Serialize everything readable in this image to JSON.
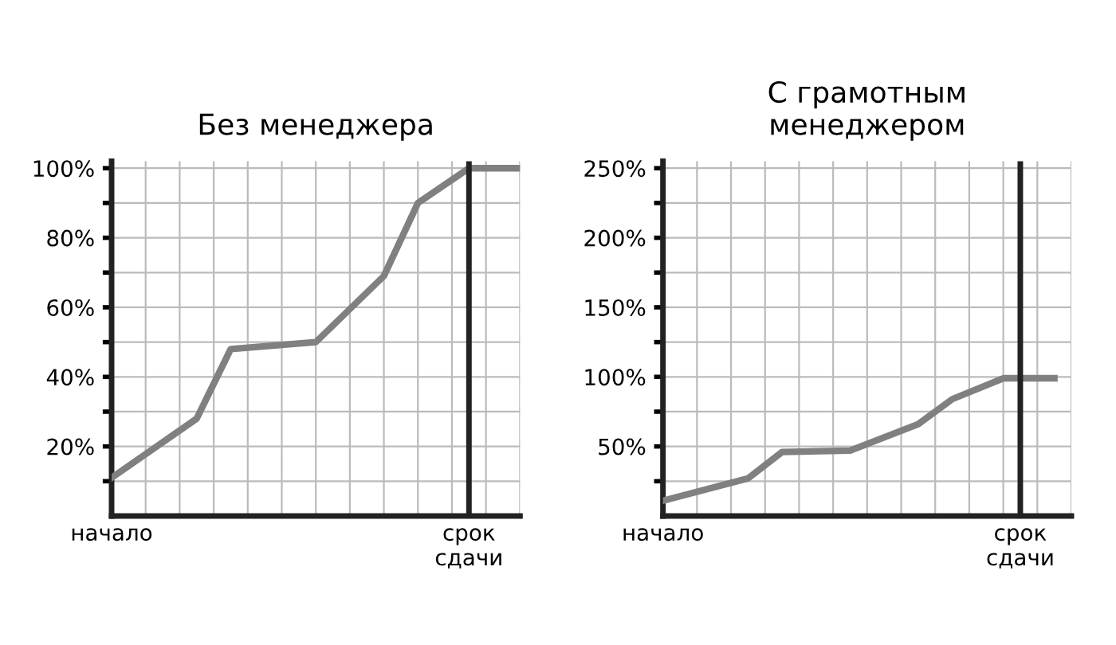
{
  "chart_data": [
    {
      "type": "line",
      "title": "Без менеджера",
      "categories": [
        "начало",
        null,
        null,
        null,
        null,
        null,
        null,
        null,
        null,
        null,
        null,
        null,
        null,
        null,
        null,
        null,
        null,
        null,
        null,
        null,
        null,
        "срок\nсдачи",
        null,
        null,
        null
      ],
      "values": [
        11,
        null,
        null,
        null,
        null,
        28,
        null,
        48,
        null,
        null,
        null,
        null,
        50,
        null,
        null,
        null,
        69,
        null,
        90,
        null,
        null,
        100,
        null,
        null,
        100
      ],
      "color": "#808080",
      "ylim": [
        0,
        102
      ],
      "yticks": [
        {
          "value": 10,
          "label": null
        },
        {
          "value": 20,
          "label": "20%"
        },
        {
          "value": 30,
          "label": null
        },
        {
          "value": 40,
          "label": "40%"
        },
        {
          "value": 50,
          "label": null
        },
        {
          "value": 60,
          "label": "60%"
        },
        {
          "value": 70,
          "label": null
        },
        {
          "value": 80,
          "label": "80%"
        },
        {
          "value": 90,
          "label": null
        },
        {
          "value": 100,
          "label": "100%"
        }
      ],
      "ref_lines": [
        {
          "axis": "x",
          "value": "срок\nсдачи",
          "color": "#222222"
        }
      ],
      "grid": true,
      "marker": "none",
      "line_style": "solid"
    },
    {
      "type": "line",
      "title": "С грамотным\nменеджером",
      "categories": [
        "начало",
        null,
        null,
        null,
        null,
        null,
        null,
        null,
        null,
        null,
        null,
        null,
        null,
        null,
        null,
        null,
        null,
        null,
        null,
        null,
        null,
        "срок\nсдачи",
        null,
        null,
        null
      ],
      "values": [
        11,
        null,
        null,
        null,
        null,
        27,
        null,
        46,
        null,
        null,
        null,
        47,
        null,
        null,
        null,
        66,
        null,
        84,
        null,
        null,
        99,
        null,
        null,
        99,
        null
      ],
      "color": "#808080",
      "ylim": [
        0,
        255
      ],
      "yticks": [
        {
          "value": 25,
          "label": null
        },
        {
          "value": 50,
          "label": "50%"
        },
        {
          "value": 75,
          "label": null
        },
        {
          "value": 100,
          "label": "100%"
        },
        {
          "value": 125,
          "label": null
        },
        {
          "value": 150,
          "label": "150%"
        },
        {
          "value": 175,
          "label": null
        },
        {
          "value": 200,
          "label": "200%"
        },
        {
          "value": 225,
          "label": null
        },
        {
          "value": 250,
          "label": "250%"
        }
      ],
      "ref_lines": [
        {
          "axis": "x",
          "value": "срок\nсдачи",
          "color": "#222222"
        }
      ],
      "grid": true,
      "marker": "none",
      "line_style": "solid"
    }
  ]
}
